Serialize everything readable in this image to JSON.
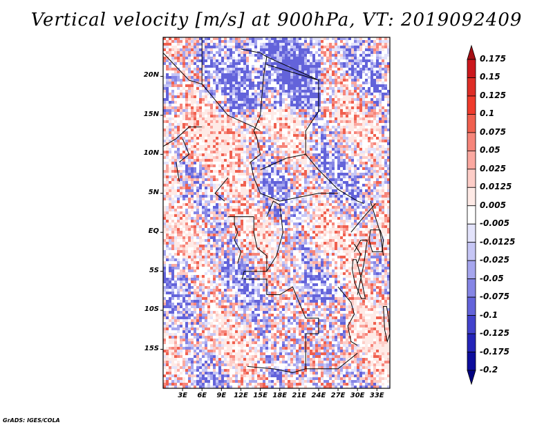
{
  "title": "Vertical velocity [m/s] at 900hPa, VT: 2019092409",
  "footer": "GrADS: IGES/COLA",
  "map": {
    "variable": "Vertical velocity",
    "units": "m/s",
    "level": "900hPa",
    "valid_time": "2019092409",
    "lat_range": [
      -20,
      25
    ],
    "lon_range": [
      0,
      35
    ],
    "lat_labels": [
      "20N",
      "15N",
      "10N",
      "5N",
      "EQ",
      "5S",
      "10S",
      "15S"
    ],
    "lat_values": [
      20,
      15,
      10,
      5,
      0,
      -5,
      -10,
      -15
    ],
    "lon_labels": [
      "3E",
      "6E",
      "9E",
      "12E",
      "15E",
      "18E",
      "21E",
      "24E",
      "27E",
      "30E",
      "33E"
    ],
    "lon_values": [
      3,
      6,
      9,
      12,
      15,
      18,
      21,
      24,
      27,
      30,
      33
    ]
  },
  "colorbar": {
    "labels": [
      "0.175",
      "0.15",
      "0.125",
      "0.1",
      "0.075",
      "0.05",
      "0.025",
      "0.0125",
      "0.005",
      "-0.005",
      "-0.0125",
      "-0.025",
      "-0.05",
      "-0.075",
      "-0.1",
      "-0.125",
      "-0.175",
      "-0.2"
    ],
    "colors": [
      "#a50f15",
      "#cb181d",
      "#de2d26",
      "#ef3b2c",
      "#f0604f",
      "#f6857a",
      "#fba8a0",
      "#fdcdc7",
      "#feeae6",
      "#ffffff",
      "#e3e3fb",
      "#c6c6f5",
      "#a6a6ee",
      "#8585e5",
      "#6363da",
      "#4242cc",
      "#2424b8",
      "#0d0d9c",
      "#000080"
    ]
  }
}
